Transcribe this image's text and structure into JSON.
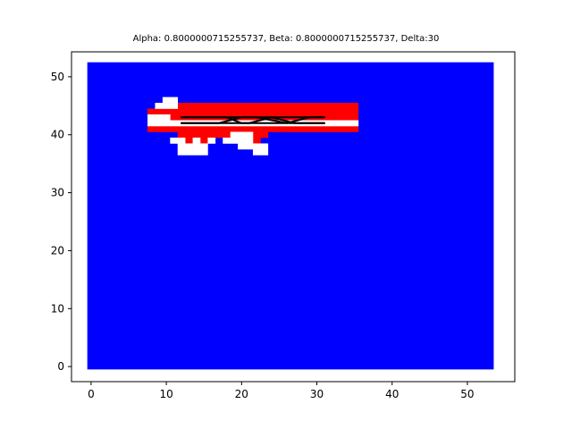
{
  "chart_data": {
    "type": "heatmap",
    "title": "Alpha: 0.8000000715255737, Beta: 0.8000000715255737, Delta:30",
    "xlabel": "",
    "ylabel": "",
    "xlim": [
      -2.6,
      56.3
    ],
    "ylim": [
      -2.6,
      54.3
    ],
    "xticks": [
      0,
      10,
      20,
      30,
      40,
      50
    ],
    "yticks": [
      0,
      10,
      20,
      30,
      40,
      50
    ],
    "grid_extent": {
      "x": [
        -0.5,
        53.5
      ],
      "y": [
        -0.5,
        52.5
      ]
    },
    "colors": {
      "background_cells": "#0000ff",
      "red_cells": "#ff0000",
      "white_cells": "#ffffff",
      "path": "#000000"
    },
    "white_cells": [
      [
        10,
        46
      ],
      [
        11,
        46
      ],
      [
        9,
        45
      ],
      [
        10,
        45
      ],
      [
        11,
        45
      ],
      [
        8,
        43
      ],
      [
        9,
        43
      ],
      [
        10,
        43
      ],
      [
        8,
        42
      ],
      [
        9,
        42
      ],
      [
        10,
        42
      ],
      [
        11,
        42
      ],
      [
        12,
        42
      ],
      [
        13,
        42
      ],
      [
        14,
        42
      ],
      [
        15,
        42
      ],
      [
        16,
        42
      ],
      [
        17,
        42
      ],
      [
        18,
        42
      ],
      [
        19,
        42
      ],
      [
        20,
        42
      ],
      [
        21,
        42
      ],
      [
        22,
        42
      ],
      [
        23,
        42
      ],
      [
        24,
        42
      ],
      [
        25,
        42
      ],
      [
        26,
        42
      ],
      [
        27,
        42
      ],
      [
        28,
        42
      ],
      [
        29,
        42
      ],
      [
        30,
        42
      ],
      [
        31,
        42
      ],
      [
        32,
        42
      ],
      [
        33,
        42
      ],
      [
        34,
        42
      ],
      [
        35,
        42
      ],
      [
        19,
        40
      ],
      [
        20,
        40
      ],
      [
        21,
        40
      ],
      [
        11,
        39
      ],
      [
        12,
        39
      ],
      [
        14,
        39
      ],
      [
        16,
        39
      ],
      [
        18,
        39
      ],
      [
        19,
        39
      ],
      [
        20,
        39
      ],
      [
        21,
        39
      ],
      [
        12,
        38
      ],
      [
        13,
        38
      ],
      [
        14,
        38
      ],
      [
        15,
        38
      ],
      [
        20,
        38
      ],
      [
        21,
        38
      ],
      [
        22,
        38
      ],
      [
        23,
        38
      ],
      [
        12,
        37
      ],
      [
        13,
        37
      ],
      [
        14,
        37
      ],
      [
        15,
        37
      ],
      [
        22,
        37
      ],
      [
        23,
        37
      ]
    ],
    "red_cells": [
      [
        9,
        44
      ],
      [
        10,
        44
      ],
      [
        11,
        45
      ],
      [
        12,
        45
      ],
      [
        13,
        45
      ],
      [
        14,
        45
      ],
      [
        15,
        45
      ],
      [
        16,
        45
      ],
      [
        17,
        45
      ],
      [
        18,
        45
      ],
      [
        19,
        45
      ],
      [
        20,
        45
      ],
      [
        21,
        45
      ],
      [
        22,
        45
      ],
      [
        23,
        45
      ],
      [
        24,
        45
      ],
      [
        25,
        45
      ],
      [
        26,
        45
      ],
      [
        27,
        45
      ],
      [
        28,
        45
      ],
      [
        29,
        45
      ],
      [
        30,
        45
      ],
      [
        31,
        45
      ],
      [
        32,
        45
      ],
      [
        33,
        45
      ],
      [
        34,
        45
      ],
      [
        35,
        45
      ],
      [
        8,
        44
      ],
      [
        11,
        44
      ],
      [
        12,
        44
      ],
      [
        13,
        44
      ],
      [
        14,
        44
      ],
      [
        15,
        44
      ],
      [
        16,
        44
      ],
      [
        17,
        44
      ],
      [
        18,
        44
      ],
      [
        19,
        44
      ],
      [
        20,
        44
      ],
      [
        21,
        44
      ],
      [
        22,
        44
      ],
      [
        23,
        44
      ],
      [
        24,
        44
      ],
      [
        25,
        44
      ],
      [
        26,
        44
      ],
      [
        27,
        44
      ],
      [
        28,
        44
      ],
      [
        29,
        44
      ],
      [
        30,
        44
      ],
      [
        31,
        44
      ],
      [
        32,
        44
      ],
      [
        33,
        44
      ],
      [
        34,
        44
      ],
      [
        35,
        44
      ],
      [
        11,
        43
      ],
      [
        12,
        43
      ],
      [
        13,
        43
      ],
      [
        14,
        43
      ],
      [
        15,
        43
      ],
      [
        16,
        43
      ],
      [
        17,
        43
      ],
      [
        18,
        43
      ],
      [
        19,
        43
      ],
      [
        20,
        43
      ],
      [
        21,
        43
      ],
      [
        22,
        43
      ],
      [
        23,
        43
      ],
      [
        24,
        43
      ],
      [
        25,
        43
      ],
      [
        26,
        43
      ],
      [
        27,
        43
      ],
      [
        28,
        43
      ],
      [
        29,
        43
      ],
      [
        30,
        43
      ],
      [
        31,
        43
      ],
      [
        32,
        43
      ],
      [
        33,
        43
      ],
      [
        34,
        43
      ],
      [
        35,
        43
      ],
      [
        8,
        41
      ],
      [
        9,
        41
      ],
      [
        10,
        41
      ],
      [
        11,
        41
      ],
      [
        12,
        41
      ],
      [
        13,
        41
      ],
      [
        14,
        41
      ],
      [
        15,
        41
      ],
      [
        16,
        41
      ],
      [
        17,
        41
      ],
      [
        18,
        41
      ],
      [
        19,
        41
      ],
      [
        20,
        41
      ],
      [
        21,
        41
      ],
      [
        22,
        41
      ],
      [
        23,
        41
      ],
      [
        24,
        41
      ],
      [
        25,
        41
      ],
      [
        26,
        41
      ],
      [
        27,
        41
      ],
      [
        28,
        41
      ],
      [
        29,
        41
      ],
      [
        30,
        41
      ],
      [
        31,
        41
      ],
      [
        32,
        41
      ],
      [
        33,
        41
      ],
      [
        34,
        41
      ],
      [
        35,
        41
      ],
      [
        12,
        40
      ],
      [
        13,
        40
      ],
      [
        14,
        40
      ],
      [
        15,
        40
      ],
      [
        16,
        40
      ],
      [
        17,
        40
      ],
      [
        18,
        40
      ],
      [
        22,
        40
      ],
      [
        23,
        40
      ],
      [
        13,
        39
      ],
      [
        15,
        39
      ],
      [
        22,
        39
      ]
    ],
    "paths": [
      [
        [
          12,
          43
        ],
        [
          18,
          43
        ],
        [
          20,
          42
        ],
        [
          24,
          42
        ],
        [
          31,
          42
        ]
      ],
      [
        [
          12,
          42
        ],
        [
          17,
          42
        ],
        [
          20,
          43
        ],
        [
          25,
          43
        ],
        [
          31,
          43
        ]
      ],
      [
        [
          12,
          42
        ],
        [
          21,
          42
        ],
        [
          24,
          43
        ],
        [
          27,
          42
        ],
        [
          31,
          42
        ]
      ],
      [
        [
          12,
          43
        ],
        [
          22,
          43
        ],
        [
          26,
          42
        ],
        [
          29,
          43
        ],
        [
          31,
          43
        ]
      ]
    ]
  }
}
